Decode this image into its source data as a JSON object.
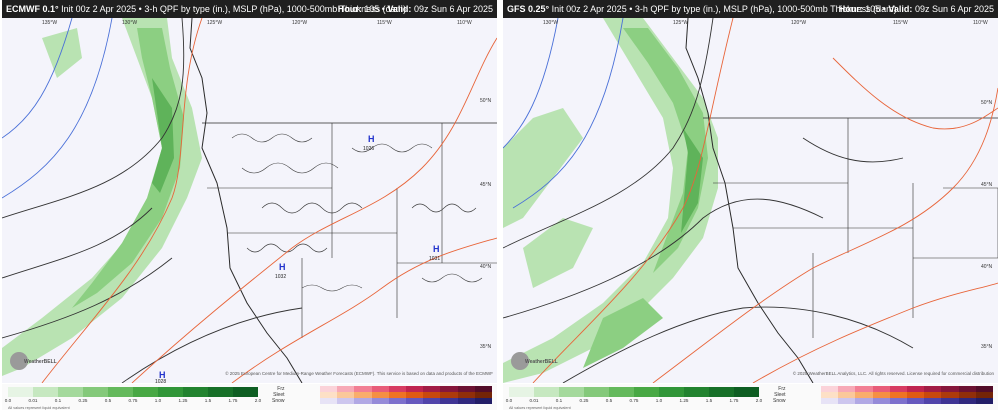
{
  "panels": [
    {
      "model_name": "ECMWF 0.1°",
      "subtitle": "Init 00z 2 Apr 2025 • 3-h QPF by type (in.), MSLP (hPa), 1000-500mb Thickness (dam)",
      "hour_label": "Hour:",
      "hour_value": "105",
      "valid_label": "Valid:",
      "valid_value": "09z Sun 6 Apr 2025",
      "credit": "© 2025 European Centre for Medium-Range Weather Forecasts (ECMWF). This service is based on data and products of the ECMWF",
      "lon_labels": [
        "135°W",
        "130°W",
        "125°W",
        "120°W",
        "115°W",
        "110°W"
      ],
      "lat_labels": [
        "50°N",
        "45°N",
        "40°N",
        "35°N"
      ],
      "pressure_centers": [
        {
          "type": "H",
          "value": "1026"
        },
        {
          "type": "H",
          "value": "1031"
        },
        {
          "type": "H",
          "value": "1032"
        },
        {
          "type": "H",
          "value": "1028"
        }
      ]
    },
    {
      "model_name": "GFS 0.25°",
      "subtitle": "Init 00z 2 Apr 2025 • 3-h QPF by type (in.), MSLP (hPa), 1000-500mb Thickness (dam)",
      "hour_label": "Hour:",
      "hour_value": "105",
      "valid_label": "Valid:",
      "valid_value": "09z Sun 6 Apr 2025",
      "credit": "© 2025 WeatherBELL Analytics, LLC. All rights reserved. License required for commercial distribution",
      "lon_labels": [
        "130°W",
        "125°W",
        "120°W",
        "115°W",
        "110°W"
      ],
      "lat_labels": [
        "50°N",
        "45°N",
        "40°N",
        "35°N"
      ],
      "pressure_centers": []
    }
  ],
  "legend": {
    "ticks": [
      "0.0",
      "0.01",
      "0.1",
      "0.25",
      "0.5",
      "0.75",
      "1.0",
      "1.25",
      "1.5",
      "1.75",
      "2.0"
    ],
    "rain_colors": [
      "#e6f4e4",
      "#c6e8c0",
      "#a4d99c",
      "#84c97a",
      "#64b95c",
      "#48a844",
      "#319638",
      "#22832f",
      "#177028",
      "#0e5e22"
    ],
    "ptype_labels": [
      "Frz",
      "Sleet",
      "Snow"
    ],
    "frz_colors": [
      "#fbd3d9",
      "#f7a9b6",
      "#f27f94",
      "#e85c79",
      "#d73b62",
      "#bf2450",
      "#a21c45",
      "#86163b",
      "#6b1132",
      "#520c29"
    ],
    "sleet_colors": [
      "#fde0c6",
      "#fbc89a",
      "#f9ad6c",
      "#f58f43",
      "#ef7322",
      "#e05a12",
      "#c9480d",
      "#ad3a0b",
      "#902e09",
      "#742407"
    ],
    "snow_colors": [
      "#e7e3f6",
      "#cdc6ee",
      "#b1a8e4",
      "#958ad8",
      "#7c6fcc",
      "#6557bd",
      "#5043a9",
      "#3e3393",
      "#2f277c",
      "#221d66"
    ],
    "note": "All values represent liquid equivalent"
  },
  "logo_text": "WeatherBELL",
  "map_colors": {
    "land_background": "#f4f4fb",
    "precip_light": "#b9e3b2",
    "precip_mid": "#8ccf82",
    "precip_heavy": "#5fb35a",
    "isobar": "#333333",
    "thickness_warm": "#e8653a",
    "thickness_cold": "#4a70d8",
    "borders": "#2a2a2a"
  }
}
